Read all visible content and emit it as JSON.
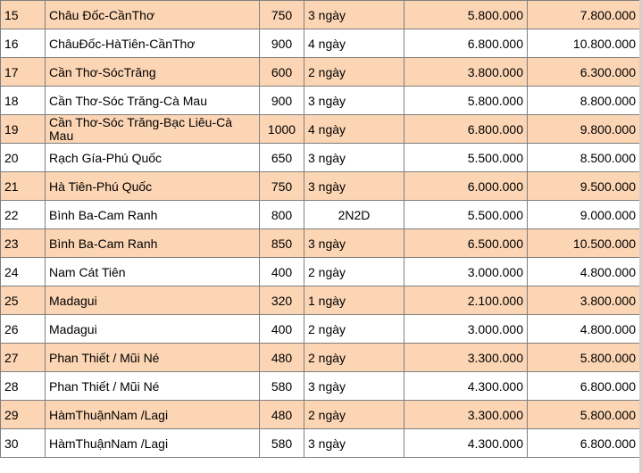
{
  "rows": [
    {
      "no": "15",
      "route": "Châu Đốc-CầnThơ",
      "km": "750",
      "days": "3 ngày",
      "price1": "5.800.000",
      "price2": "7.800.000"
    },
    {
      "no": "16",
      "route": "ChâuĐốc-HàTiên-CầnThơ",
      "km": "900",
      "days": "4 ngày",
      "price1": "6.800.000",
      "price2": "10.800.000"
    },
    {
      "no": "17",
      "route": "Cần Thơ-SócTrăng",
      "km": "600",
      "days": "2 ngày",
      "price1": "3.800.000",
      "price2": "6.300.000"
    },
    {
      "no": "18",
      "route": "Cần Thơ-Sóc Trăng-Cà Mau",
      "km": "900",
      "days": "3 ngày",
      "price1": "5.800.000",
      "price2": "8.800.000"
    },
    {
      "no": "19",
      "route": "Cần Thơ-Sóc Trăng-Bạc Liêu-Cà Mau",
      "km": "1000",
      "days": "4 ngày",
      "price1": "6.800.000",
      "price2": "9.800.000"
    },
    {
      "no": "20",
      "route": "Rạch Gía-Phú Quốc",
      "km": "650",
      "days": "3 ngày",
      "price1": "5.500.000",
      "price2": "8.500.000"
    },
    {
      "no": "21",
      "route": "Hà Tiên-Phú Quốc",
      "km": "750",
      "days": "3 ngày",
      "price1": "6.000.000",
      "price2": "9.500.000"
    },
    {
      "no": "22",
      "route": "Bình Ba-Cam Ranh",
      "km": "800",
      "days": "2N2D",
      "price1": "5.500.000",
      "price2": "9.000.000"
    },
    {
      "no": "23",
      "route": "Bình Ba-Cam Ranh",
      "km": "850",
      "days": "3 ngày",
      "price1": "6.500.000",
      "price2": "10.500.000"
    },
    {
      "no": "24",
      "route": "Nam Cát Tiên",
      "km": "400",
      "days": "2 ngày",
      "price1": "3.000.000",
      "price2": "4.800.000"
    },
    {
      "no": "25",
      "route": "Madagui",
      "km": "320",
      "days": "1 ngày",
      "price1": "2.100.000",
      "price2": "3.800.000"
    },
    {
      "no": "26",
      "route": "Madagui",
      "km": "400",
      "days": "2 ngày",
      "price1": "3.000.000",
      "price2": "4.800.000"
    },
    {
      "no": "27",
      "route": "Phan Thiết / Mũi Né",
      "km": "480",
      "days": "2 ngày",
      "price1": "3.300.000",
      "price2": "5.800.000"
    },
    {
      "no": "28",
      "route": "Phan Thiết / Mũi Né",
      "km": "580",
      "days": "3 ngày",
      "price1": "4.300.000",
      "price2": "6.800.000"
    },
    {
      "no": "29",
      "route": "HàmThuậnNam /Lagi",
      "km": "480",
      "days": "2 ngày",
      "price1": "3.300.000",
      "price2": "5.800.000"
    },
    {
      "no": "30",
      "route": "HàmThuậnNam /Lagi",
      "km": "580",
      "days": "3 ngày",
      "price1": "4.300.000",
      "price2": "6.800.000"
    }
  ],
  "colors": {
    "row_highlight": "#fcd5b4",
    "row_plain": "#ffffff",
    "grid_line": "#7f7f7f"
  }
}
